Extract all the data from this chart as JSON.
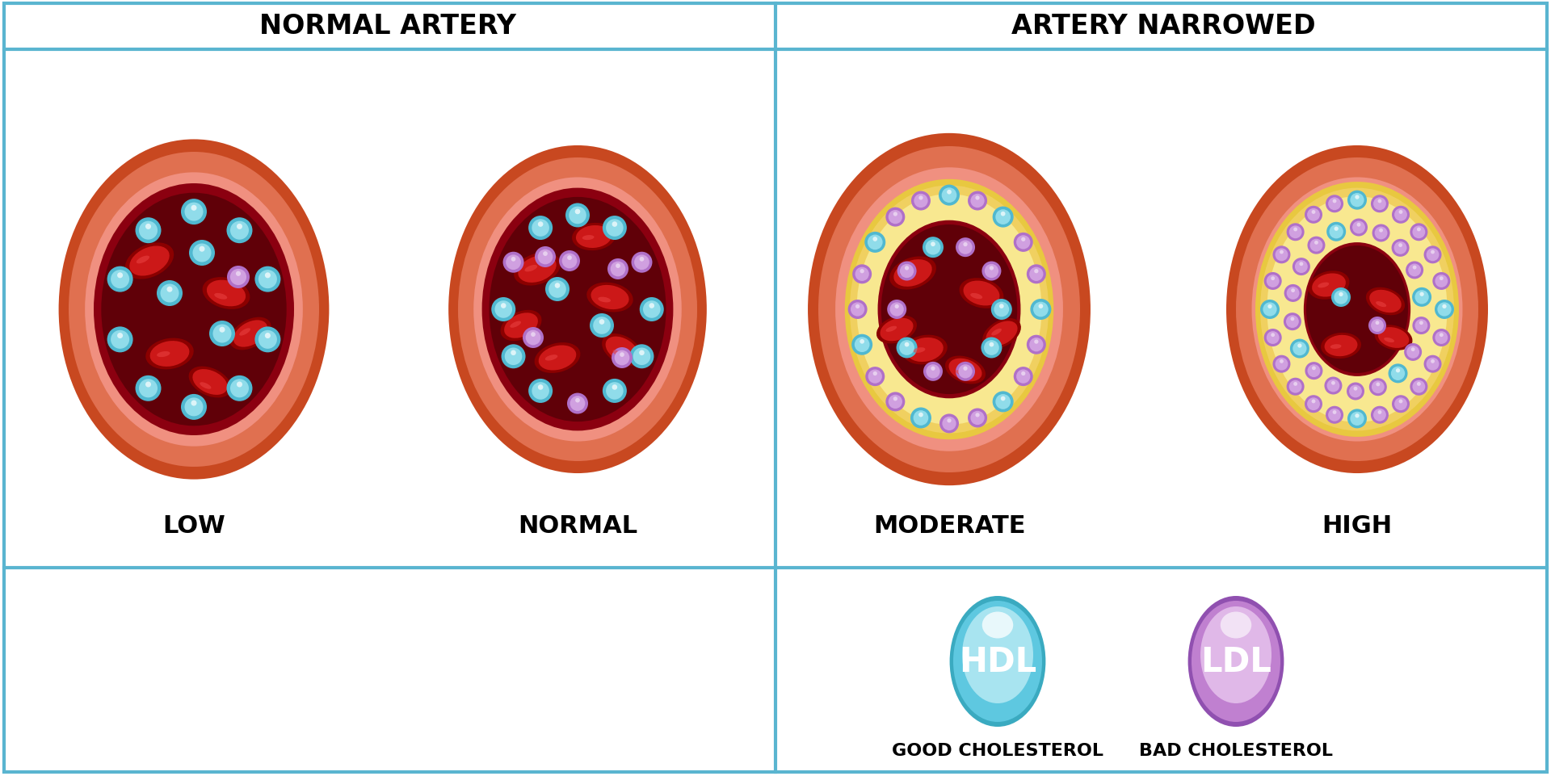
{
  "background_color": "#ffffff",
  "border_color": "#5ab5d0",
  "title_left": "NORMAL ARTERY",
  "title_right": "ARTERY NARROWED",
  "labels": [
    "LOW",
    "NORMAL",
    "MODERATE",
    "HIGH"
  ],
  "hdl_label": "HDL",
  "ldl_label": "LDL",
  "hdl_sublabel": "GOOD CHOLESTEROL",
  "ldl_sublabel": "BAD CHOLESTEROL",
  "hdl_color_light": "#a8e4f0",
  "hdl_color_mid": "#5ec8e0",
  "hdl_color_dark": "#3aaac0",
  "ldl_color_light": "#e0b8e8",
  "ldl_color_mid": "#c080d0",
  "ldl_color_dark": "#9050b0",
  "artery_outline": "#c84820",
  "artery_outer": "#e07050",
  "artery_mid": "#d86050",
  "artery_inner": "#f09080",
  "blood_outer": "#8b0010",
  "blood_inner": "#600008",
  "rbc_outline": "#8b0000",
  "rbc_fill": "#cc1818",
  "rbc_highlight": "#e84040",
  "plaque_outer": "#e8c840",
  "plaque_mid": "#f0d060",
  "plaque_light": "#f8e890",
  "hdl_dot_outer": "#50b8d0",
  "hdl_dot_inner": "#90dcea",
  "ldl_dot_outer": "#b070c8",
  "ldl_dot_inner": "#d0a0e0",
  "title_fontsize": 24,
  "label_fontsize": 22,
  "legend_fontsize": 16
}
